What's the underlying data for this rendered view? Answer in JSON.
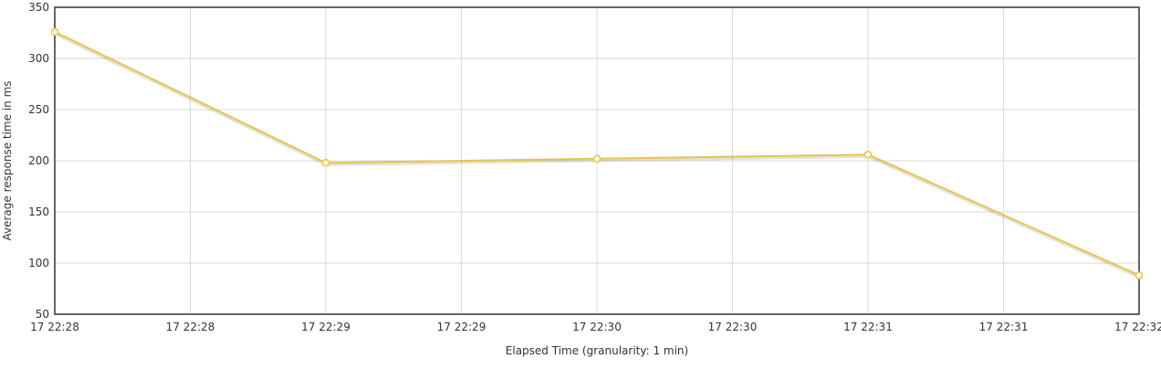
{
  "chart_data": {
    "type": "line",
    "title": "",
    "xlabel": "Elapsed Time (granularity: 1 min)",
    "ylabel": "Average response time in ms",
    "ylim": [
      50,
      350
    ],
    "yticks": [
      50,
      100,
      150,
      200,
      250,
      300,
      350
    ],
    "xtick_labels": [
      "17 22:28",
      "17 22:28",
      "17 22:29",
      "17 22:29",
      "17 22:30",
      "17 22:30",
      "17 22:31",
      "17 22:31",
      "17 22:32"
    ],
    "grid": true,
    "legend": "none",
    "series": [
      {
        "color": "#e8c547",
        "x_index": [
          0,
          2,
          4,
          6,
          8
        ],
        "values": [
          326,
          198,
          202,
          206,
          88
        ]
      }
    ]
  }
}
